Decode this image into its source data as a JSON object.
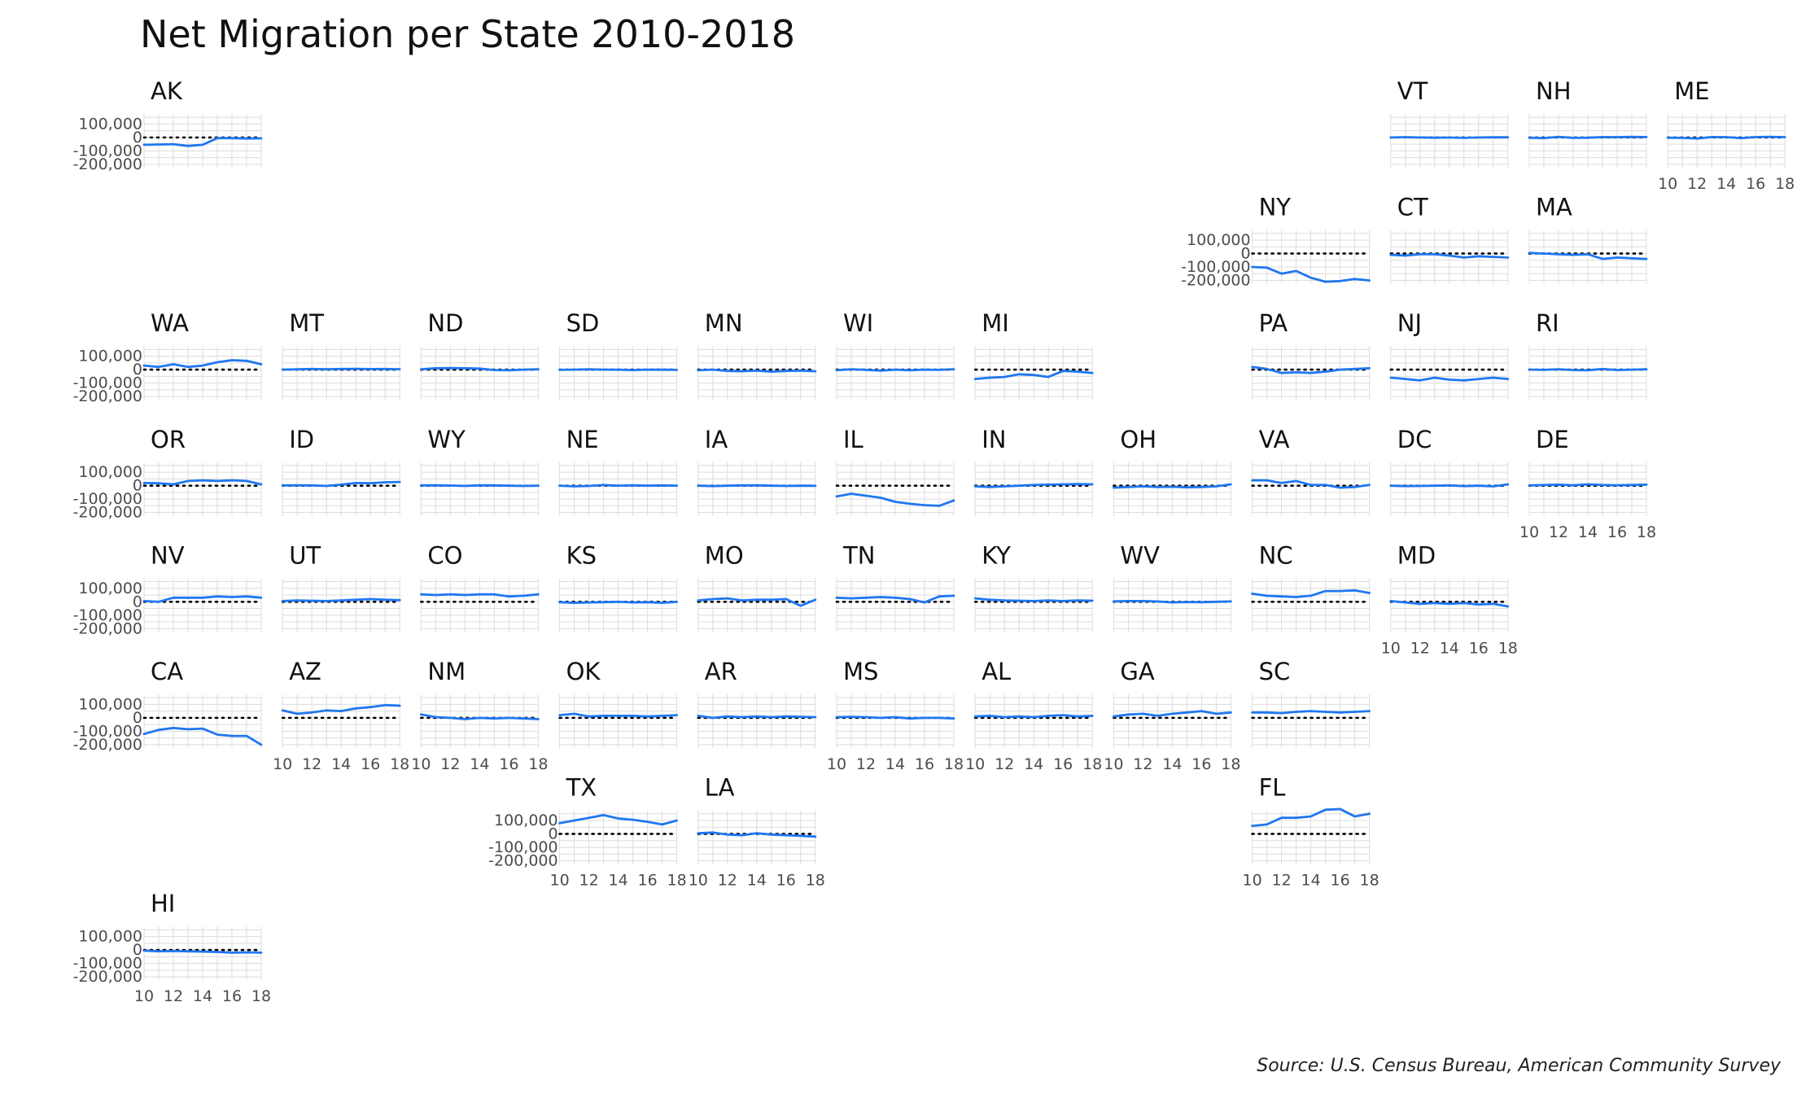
{
  "chart_data": {
    "type": "line",
    "title": "Net Migration per State 2010-2018",
    "source": "Source: U.S. Census Bureau, American Community Survey",
    "x": [
      2010,
      2011,
      2012,
      2013,
      2014,
      2015,
      2016,
      2017,
      2018
    ],
    "x_ticks": [
      10,
      12,
      14,
      16,
      18
    ],
    "y_ticks": [
      100000,
      0,
      -100000,
      -200000
    ],
    "y_tick_labels": [
      "100,000",
      "0",
      "-100,000",
      "-200,000"
    ],
    "ylim": [
      -225000,
      175000
    ],
    "line_color": "#1f77f0",
    "panels": [
      {
        "state": "AK",
        "row": 0,
        "col": 0,
        "values": [
          -55000,
          -52000,
          -50000,
          -63000,
          -55000,
          -5000,
          -5000,
          -8000,
          -7000
        ]
      },
      {
        "state": "VT",
        "row": 0,
        "col": 9,
        "values": [
          0,
          2000,
          0,
          -2000,
          -1000,
          -3000,
          0,
          1000,
          1000
        ]
      },
      {
        "state": "NH",
        "row": 0,
        "col": 10,
        "values": [
          -2000,
          -5000,
          5000,
          -3000,
          -2000,
          3000,
          2000,
          4000,
          3000
        ]
      },
      {
        "state": "ME",
        "row": 0,
        "col": 11,
        "values": [
          -2000,
          -3000,
          -8000,
          3000,
          2000,
          -5000,
          3000,
          5000,
          2000
        ]
      },
      {
        "state": "NY",
        "row": 1,
        "col": 8,
        "values": [
          -100000,
          -105000,
          -150000,
          -130000,
          -180000,
          -210000,
          -205000,
          -190000,
          -200000
        ]
      },
      {
        "state": "CT",
        "row": 1,
        "col": 9,
        "values": [
          -10000,
          -15000,
          -5000,
          -5000,
          -15000,
          -30000,
          -20000,
          -25000,
          -30000
        ]
      },
      {
        "state": "MA",
        "row": 1,
        "col": 10,
        "values": [
          5000,
          0,
          -5000,
          -10000,
          -5000,
          -40000,
          -30000,
          -35000,
          -40000
        ]
      },
      {
        "state": "WA",
        "row": 2,
        "col": 0,
        "values": [
          30000,
          20000,
          40000,
          20000,
          30000,
          55000,
          70000,
          65000,
          40000
        ]
      },
      {
        "state": "MT",
        "row": 2,
        "col": 1,
        "values": [
          0,
          2000,
          5000,
          3000,
          5000,
          6000,
          4000,
          5000,
          3000
        ]
      },
      {
        "state": "ND",
        "row": 2,
        "col": 2,
        "values": [
          3000,
          10000,
          12000,
          10000,
          8000,
          -3000,
          -5000,
          0,
          2000
        ]
      },
      {
        "state": "SD",
        "row": 2,
        "col": 3,
        "values": [
          -2000,
          0,
          2000,
          0,
          -1000,
          -3000,
          0,
          -1000,
          -2000
        ]
      },
      {
        "state": "MN",
        "row": 2,
        "col": 4,
        "values": [
          -5000,
          0,
          -10000,
          -12000,
          -8000,
          -15000,
          -10000,
          -8000,
          -12000
        ]
      },
      {
        "state": "WI",
        "row": 2,
        "col": 5,
        "values": [
          -5000,
          3000,
          -2000,
          -8000,
          0,
          -5000,
          0,
          -2000,
          3000
        ]
      },
      {
        "state": "MI",
        "row": 2,
        "col": 6,
        "values": [
          -70000,
          -60000,
          -55000,
          -35000,
          -40000,
          -55000,
          -10000,
          -15000,
          -25000
        ]
      },
      {
        "state": "PA",
        "row": 2,
        "col": 8,
        "values": [
          20000,
          5000,
          -25000,
          -20000,
          -25000,
          -15000,
          0,
          5000,
          10000
        ]
      },
      {
        "state": "NJ",
        "row": 2,
        "col": 9,
        "values": [
          -60000,
          -70000,
          -80000,
          -60000,
          -75000,
          -80000,
          -70000,
          -60000,
          -70000
        ]
      },
      {
        "state": "RI",
        "row": 2,
        "col": 10,
        "values": [
          0,
          -2000,
          3000,
          -3000,
          -5000,
          5000,
          -3000,
          0,
          2000
        ]
      },
      {
        "state": "OR",
        "row": 3,
        "col": 0,
        "values": [
          20000,
          18000,
          10000,
          35000,
          40000,
          35000,
          40000,
          35000,
          10000
        ]
      },
      {
        "state": "ID",
        "row": 3,
        "col": 1,
        "values": [
          2000,
          3000,
          2000,
          -2000,
          8000,
          20000,
          18000,
          25000,
          28000
        ]
      },
      {
        "state": "WY",
        "row": 3,
        "col": 2,
        "values": [
          2000,
          3000,
          1000,
          -2000,
          3000,
          2000,
          0,
          -2000,
          0
        ]
      },
      {
        "state": "NE",
        "row": 3,
        "col": 3,
        "values": [
          0,
          -5000,
          -2000,
          5000,
          0,
          3000,
          0,
          2000,
          0
        ]
      },
      {
        "state": "IA",
        "row": 3,
        "col": 4,
        "values": [
          0,
          -3000,
          0,
          2000,
          3000,
          0,
          -2000,
          0,
          -1000
        ]
      },
      {
        "state": "IL",
        "row": 3,
        "col": 5,
        "values": [
          -80000,
          -60000,
          -75000,
          -90000,
          -120000,
          -135000,
          -145000,
          -150000,
          -110000
        ]
      },
      {
        "state": "IN",
        "row": 3,
        "col": 6,
        "values": [
          -5000,
          -10000,
          -5000,
          0,
          5000,
          8000,
          10000,
          12000,
          10000
        ]
      },
      {
        "state": "OH",
        "row": 3,
        "col": 7,
        "values": [
          -15000,
          -10000,
          -5000,
          -10000,
          -8000,
          -12000,
          -10000,
          -5000,
          10000
        ]
      },
      {
        "state": "VA",
        "row": 3,
        "col": 8,
        "values": [
          40000,
          40000,
          20000,
          35000,
          5000,
          5000,
          -15000,
          -10000,
          5000
        ]
      },
      {
        "state": "DC",
        "row": 3,
        "col": 9,
        "values": [
          0,
          -3000,
          -2000,
          0,
          2000,
          -3000,
          0,
          -5000,
          10000
        ]
      },
      {
        "state": "DE",
        "row": 3,
        "col": 10,
        "values": [
          2000,
          5000,
          8000,
          3000,
          10000,
          5000,
          3000,
          5000,
          8000
        ]
      },
      {
        "state": "NV",
        "row": 4,
        "col": 0,
        "values": [
          5000,
          0,
          30000,
          30000,
          30000,
          40000,
          35000,
          40000,
          30000
        ]
      },
      {
        "state": "UT",
        "row": 4,
        "col": 1,
        "values": [
          5000,
          10000,
          8000,
          5000,
          10000,
          15000,
          20000,
          15000,
          12000
        ]
      },
      {
        "state": "CO",
        "row": 4,
        "col": 2,
        "values": [
          55000,
          50000,
          55000,
          50000,
          55000,
          55000,
          40000,
          45000,
          55000
        ]
      },
      {
        "state": "KS",
        "row": 4,
        "col": 3,
        "values": [
          -3000,
          -8000,
          -5000,
          -3000,
          0,
          -5000,
          -3000,
          -8000,
          0
        ]
      },
      {
        "state": "MO",
        "row": 4,
        "col": 4,
        "values": [
          10000,
          20000,
          25000,
          10000,
          15000,
          15000,
          20000,
          -30000,
          15000
        ]
      },
      {
        "state": "TN",
        "row": 4,
        "col": 5,
        "values": [
          30000,
          25000,
          30000,
          35000,
          30000,
          20000,
          -5000,
          40000,
          45000
        ]
      },
      {
        "state": "KY",
        "row": 4,
        "col": 6,
        "values": [
          25000,
          15000,
          10000,
          8000,
          5000,
          10000,
          5000,
          10000,
          8000
        ]
      },
      {
        "state": "WV",
        "row": 4,
        "col": 7,
        "values": [
          3000,
          5000,
          5000,
          2000,
          -5000,
          -2000,
          -3000,
          0,
          2000
        ]
      },
      {
        "state": "NC",
        "row": 4,
        "col": 8,
        "values": [
          60000,
          45000,
          40000,
          35000,
          45000,
          80000,
          80000,
          85000,
          65000
        ]
      },
      {
        "state": "MD",
        "row": 4,
        "col": 9,
        "values": [
          5000,
          -5000,
          -15000,
          -10000,
          -15000,
          -10000,
          -20000,
          -15000,
          -35000
        ]
      },
      {
        "state": "CA",
        "row": 5,
        "col": 0,
        "values": [
          -120000,
          -90000,
          -75000,
          -85000,
          -80000,
          -125000,
          -135000,
          -135000,
          -200000
        ]
      },
      {
        "state": "AZ",
        "row": 5,
        "col": 1,
        "values": [
          55000,
          30000,
          40000,
          55000,
          50000,
          70000,
          80000,
          95000,
          90000
        ]
      },
      {
        "state": "NM",
        "row": 5,
        "col": 2,
        "values": [
          25000,
          5000,
          0,
          -10000,
          0,
          -5000,
          0,
          -5000,
          -10000
        ]
      },
      {
        "state": "OK",
        "row": 5,
        "col": 3,
        "values": [
          20000,
          30000,
          10000,
          15000,
          15000,
          15000,
          10000,
          15000,
          20000
        ]
      },
      {
        "state": "AR",
        "row": 5,
        "col": 4,
        "values": [
          15000,
          0,
          10000,
          5000,
          10000,
          5000,
          10000,
          8000,
          5000
        ]
      },
      {
        "state": "MS",
        "row": 5,
        "col": 5,
        "values": [
          5000,
          8000,
          5000,
          0,
          5000,
          -5000,
          0,
          0,
          -5000
        ]
      },
      {
        "state": "AL",
        "row": 5,
        "col": 6,
        "values": [
          10000,
          15000,
          5000,
          10000,
          5000,
          15000,
          20000,
          10000,
          15000
        ]
      },
      {
        "state": "GA",
        "row": 5,
        "col": 7,
        "values": [
          10000,
          25000,
          30000,
          15000,
          30000,
          40000,
          50000,
          30000,
          40000
        ]
      },
      {
        "state": "SC",
        "row": 5,
        "col": 8,
        "values": [
          40000,
          40000,
          35000,
          45000,
          50000,
          45000,
          40000,
          45000,
          50000
        ]
      },
      {
        "state": "TX",
        "row": 6,
        "col": 3,
        "values": [
          80000,
          100000,
          120000,
          140000,
          115000,
          105000,
          90000,
          70000,
          100000
        ]
      },
      {
        "state": "LA",
        "row": 6,
        "col": 4,
        "values": [
          5000,
          10000,
          -5000,
          -10000,
          5000,
          -5000,
          -10000,
          -15000,
          -20000
        ]
      },
      {
        "state": "FL",
        "row": 6,
        "col": 8,
        "values": [
          60000,
          70000,
          120000,
          120000,
          130000,
          180000,
          185000,
          130000,
          150000
        ]
      },
      {
        "state": "HI",
        "row": 7,
        "col": 0,
        "values": [
          -5000,
          -10000,
          -8000,
          -10000,
          -12000,
          -15000,
          -20000,
          -18000,
          -20000
        ]
      }
    ],
    "y_axis_panels": [
      "AK",
      "NY",
      "WA",
      "OR",
      "NV",
      "CA",
      "TX",
      "HI"
    ],
    "x_axis_panels": [
      "ME",
      "DE",
      "MD",
      "AZ",
      "NM",
      "MS",
      "AL",
      "GA",
      "TX",
      "LA",
      "FL",
      "HI"
    ]
  }
}
